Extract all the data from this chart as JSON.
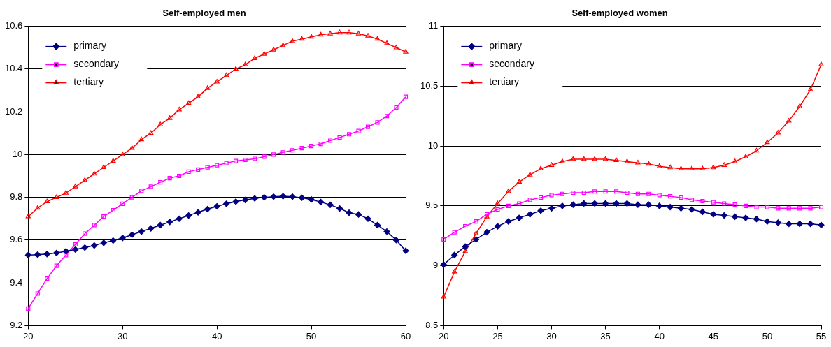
{
  "chart_data": [
    {
      "type": "line",
      "title": "Self-employed men",
      "x": [
        20,
        21,
        22,
        23,
        24,
        25,
        26,
        27,
        28,
        29,
        30,
        31,
        32,
        33,
        34,
        35,
        36,
        37,
        38,
        39,
        40,
        41,
        42,
        43,
        44,
        45,
        46,
        47,
        48,
        49,
        50,
        51,
        52,
        53,
        54,
        55,
        56,
        57,
        58,
        59,
        60
      ],
      "xlim": [
        20,
        60
      ],
      "xticks": [
        20,
        30,
        40,
        50,
        60
      ],
      "ylim": [
        9.2,
        10.6
      ],
      "yticks": [
        9.2,
        9.4,
        9.6,
        9.8,
        {
          "value": 10,
          "label": "10"
        },
        10.2,
        10.4,
        10.6
      ],
      "grid": "y",
      "legend": "top left",
      "series": [
        {
          "name": "primary",
          "color": "#000080",
          "marker": "diamond",
          "values": [
            9.53,
            9.532,
            9.535,
            9.54,
            9.548,
            9.556,
            9.565,
            9.575,
            9.587,
            9.598,
            9.61,
            9.625,
            9.64,
            9.655,
            9.67,
            9.685,
            9.7,
            9.715,
            9.73,
            9.745,
            9.758,
            9.77,
            9.78,
            9.788,
            9.795,
            9.8,
            9.803,
            9.805,
            9.803,
            9.798,
            9.79,
            9.778,
            9.765,
            9.748,
            9.728,
            9.72,
            9.7,
            9.67,
            9.64,
            9.6,
            9.55
          ]
        },
        {
          "name": "secondary",
          "color": "#ff00ff",
          "marker": "square",
          "values": [
            9.28,
            9.35,
            9.42,
            9.48,
            9.53,
            9.58,
            9.63,
            9.67,
            9.71,
            9.74,
            9.77,
            9.8,
            9.83,
            9.85,
            9.87,
            9.89,
            9.9,
            9.92,
            9.93,
            9.94,
            9.95,
            9.96,
            9.97,
            9.975,
            9.98,
            9.99,
            10.0,
            10.01,
            10.02,
            10.03,
            10.04,
            10.05,
            10.065,
            10.08,
            10.095,
            10.11,
            10.13,
            10.15,
            10.18,
            10.22,
            10.27
          ]
        },
        {
          "name": "tertiary",
          "color": "#ff0000",
          "marker": "triangle",
          "values": [
            9.71,
            9.75,
            9.78,
            9.8,
            9.82,
            9.85,
            9.88,
            9.91,
            9.94,
            9.97,
            10.0,
            10.03,
            10.07,
            10.1,
            10.14,
            10.17,
            10.21,
            10.24,
            10.27,
            10.31,
            10.34,
            10.37,
            10.4,
            10.42,
            10.45,
            10.47,
            10.49,
            10.51,
            10.53,
            10.54,
            10.55,
            10.56,
            10.565,
            10.57,
            10.57,
            10.565,
            10.555,
            10.54,
            10.52,
            10.5,
            10.48
          ]
        }
      ]
    },
    {
      "type": "line",
      "title": "Self-employed women",
      "x": [
        20,
        21,
        22,
        23,
        24,
        25,
        26,
        27,
        28,
        29,
        30,
        31,
        32,
        33,
        34,
        35,
        36,
        37,
        38,
        39,
        40,
        41,
        42,
        43,
        44,
        45,
        46,
        47,
        48,
        49,
        50,
        51,
        52,
        53,
        54,
        55
      ],
      "xlim": [
        20,
        55
      ],
      "xticks": [
        20,
        25,
        30,
        35,
        40,
        45,
        50,
        55
      ],
      "ylim": [
        8.5,
        11
      ],
      "yticks": [
        8.5,
        9,
        9.5,
        10,
        10.5,
        11
      ],
      "grid": "y",
      "legend": "top left",
      "series": [
        {
          "name": "primary",
          "color": "#000080",
          "marker": "diamond",
          "values": [
            9.01,
            9.09,
            9.16,
            9.22,
            9.28,
            9.33,
            9.37,
            9.4,
            9.43,
            9.46,
            9.48,
            9.5,
            9.51,
            9.52,
            9.52,
            9.52,
            9.52,
            9.52,
            9.51,
            9.51,
            9.5,
            9.49,
            9.48,
            9.47,
            9.45,
            9.43,
            9.42,
            9.41,
            9.4,
            9.39,
            9.37,
            9.36,
            9.35,
            9.35,
            9.35,
            9.34
          ]
        },
        {
          "name": "secondary",
          "color": "#ff00ff",
          "marker": "square",
          "values": [
            9.22,
            9.28,
            9.33,
            9.37,
            9.43,
            9.47,
            9.5,
            9.52,
            9.55,
            9.57,
            9.59,
            9.6,
            9.61,
            9.61,
            9.62,
            9.62,
            9.62,
            9.61,
            9.6,
            9.6,
            9.59,
            9.58,
            9.57,
            9.55,
            9.54,
            9.53,
            9.52,
            9.51,
            9.5,
            9.49,
            9.49,
            9.48,
            9.48,
            9.48,
            9.48,
            9.49
          ]
        },
        {
          "name": "tertiary",
          "color": "#ff0000",
          "marker": "triangle",
          "values": [
            8.74,
            8.95,
            9.12,
            9.27,
            9.41,
            9.52,
            9.62,
            9.7,
            9.76,
            9.81,
            9.84,
            9.87,
            9.89,
            9.89,
            9.89,
            9.89,
            9.88,
            9.87,
            9.86,
            9.85,
            9.83,
            9.82,
            9.81,
            9.81,
            9.81,
            9.82,
            9.84,
            9.87,
            9.91,
            9.96,
            10.03,
            10.11,
            10.21,
            10.33,
            10.47,
            10.68
          ]
        }
      ]
    }
  ]
}
